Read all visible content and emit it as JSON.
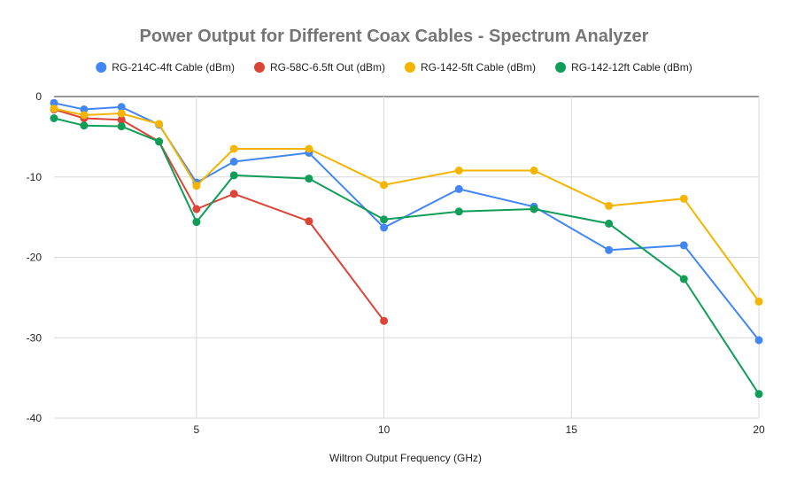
{
  "chart_data": {
    "type": "line",
    "title": "Power Output for Different Coax Cables - Spectrum Analyzer",
    "xlabel": "Wiltron Output Frequency (GHz)",
    "ylabel": "",
    "xlim": [
      1.2,
      20
    ],
    "ylim": [
      -40,
      0
    ],
    "xticks": [
      5,
      10,
      15,
      20
    ],
    "yticks": [
      0,
      -10,
      -20,
      -30,
      -40
    ],
    "grid": true,
    "legend_position": "top",
    "series": [
      {
        "name": "RG-214C-4ft Cable (dBm)",
        "color": "#4285F4",
        "points": [
          [
            1.2,
            -0.8
          ],
          [
            2,
            -1.6
          ],
          [
            3,
            -1.3
          ],
          [
            4,
            -3.5
          ],
          [
            5,
            -10.7
          ],
          [
            6,
            -8.1
          ],
          [
            8,
            -7.0
          ],
          [
            10,
            -16.3
          ],
          [
            12,
            -11.5
          ],
          [
            14,
            -13.7
          ],
          [
            16,
            -19.1
          ],
          [
            18,
            -18.5
          ],
          [
            20,
            -30.3
          ]
        ]
      },
      {
        "name": "RG-58C-6.5ft Out (dBm)",
        "color": "#DB4437",
        "points": [
          [
            1.2,
            -1.6
          ],
          [
            2,
            -2.7
          ],
          [
            3,
            -2.9
          ],
          [
            4,
            -5.6
          ],
          [
            5,
            -14.0
          ],
          [
            6,
            -12.1
          ],
          [
            8,
            -15.5
          ],
          [
            10,
            -27.9
          ]
        ]
      },
      {
        "name": "RG-142-5ft Cable (dBm)",
        "color": "#F4B400",
        "points": [
          [
            1.2,
            -1.5
          ],
          [
            2,
            -2.3
          ],
          [
            3,
            -2.1
          ],
          [
            4,
            -3.4
          ],
          [
            5,
            -11.1
          ],
          [
            6,
            -6.5
          ],
          [
            8,
            -6.5
          ],
          [
            10,
            -11.0
          ],
          [
            12,
            -9.2
          ],
          [
            14,
            -9.2
          ],
          [
            16,
            -13.6
          ],
          [
            18,
            -12.7
          ],
          [
            20,
            -25.5
          ]
        ]
      },
      {
        "name": "RG-142-12ft Cable (dBm)",
        "color": "#0F9D58",
        "points": [
          [
            1.2,
            -2.7
          ],
          [
            2,
            -3.6
          ],
          [
            3,
            -3.7
          ],
          [
            4,
            -5.6
          ],
          [
            5,
            -15.6
          ],
          [
            6,
            -9.8
          ],
          [
            8,
            -10.2
          ],
          [
            10,
            -15.3
          ],
          [
            12,
            -14.3
          ],
          [
            14,
            -14.0
          ],
          [
            16,
            -15.8
          ],
          [
            18,
            -22.7
          ],
          [
            20,
            -37.0
          ]
        ]
      }
    ]
  }
}
